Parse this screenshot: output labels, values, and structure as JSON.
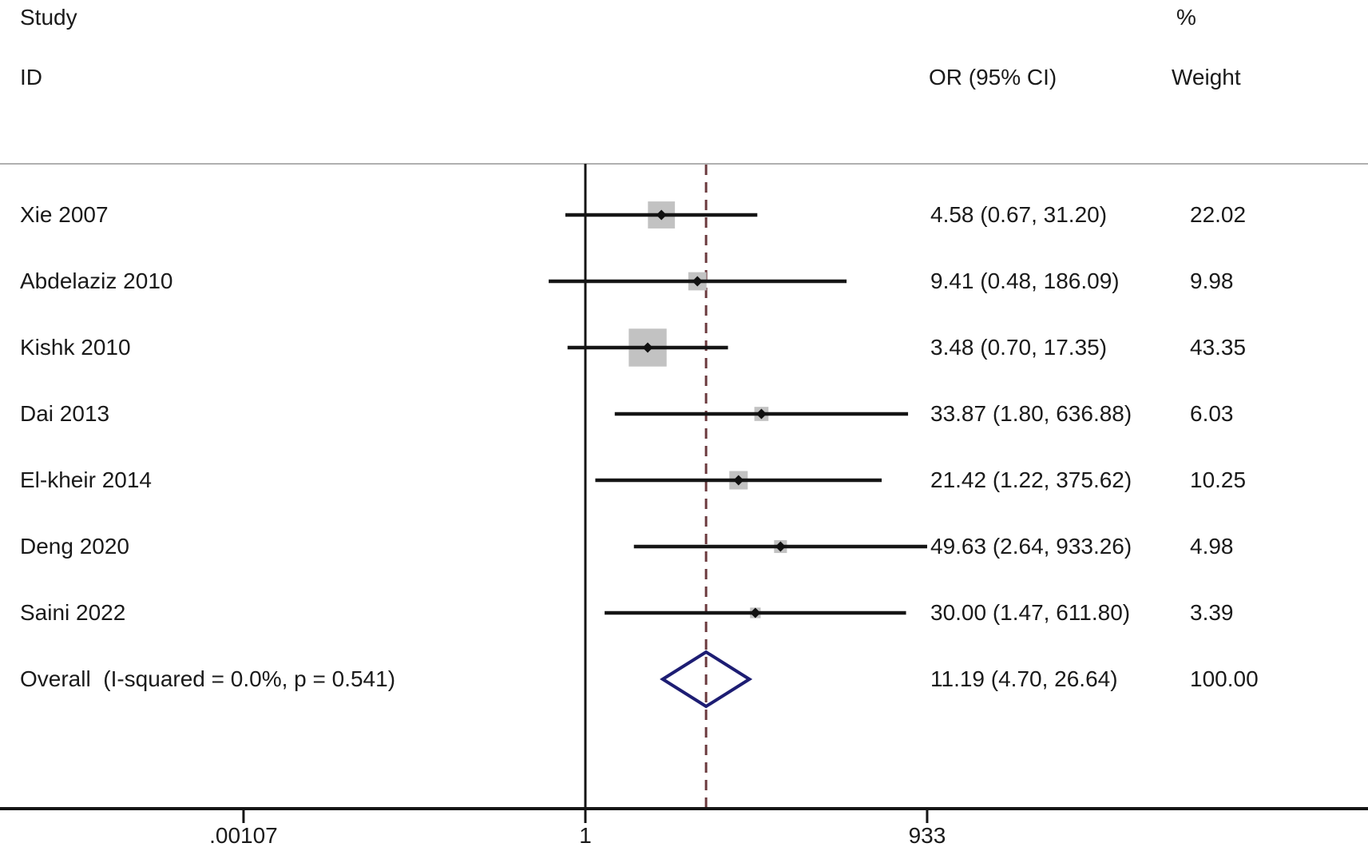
{
  "header": {
    "study_line1": "Study",
    "study_line2": "ID",
    "or_col": "OR (95% CI)",
    "weight_line1": "%",
    "weight_line2": "Weight"
  },
  "chart_data": {
    "type": "forest",
    "x_scale": "log",
    "x_ticks": [
      {
        "label": ".00107",
        "value": 0.00107
      },
      {
        "label": "1",
        "value": 1
      },
      {
        "label": "933",
        "value": 933
      }
    ],
    "null_line_value": 1,
    "studies": [
      {
        "id": "Xie 2007",
        "or": 4.58,
        "ci_low": 0.67,
        "ci_high": 31.2,
        "weight": 22.02,
        "or_text": "4.58 (0.67, 31.20)",
        "weight_text": "22.02"
      },
      {
        "id": "Abdelaziz 2010",
        "or": 9.41,
        "ci_low": 0.48,
        "ci_high": 186.09,
        "weight": 9.98,
        "or_text": "9.41 (0.48, 186.09)",
        "weight_text": "9.98"
      },
      {
        "id": "Kishk 2010",
        "or": 3.48,
        "ci_low": 0.7,
        "ci_high": 17.35,
        "weight": 43.35,
        "or_text": "3.48 (0.70, 17.35)",
        "weight_text": "43.35"
      },
      {
        "id": "Dai 2013",
        "or": 33.87,
        "ci_low": 1.8,
        "ci_high": 636.88,
        "weight": 6.03,
        "or_text": "33.87 (1.80, 636.88)",
        "weight_text": "6.03"
      },
      {
        "id": "El-kheir 2014",
        "or": 21.42,
        "ci_low": 1.22,
        "ci_high": 375.62,
        "weight": 10.25,
        "or_text": "21.42 (1.22, 375.62)",
        "weight_text": "10.25"
      },
      {
        "id": "Deng 2020",
        "or": 49.63,
        "ci_low": 2.64,
        "ci_high": 933.26,
        "weight": 4.98,
        "or_text": "49.63 (2.64, 933.26)",
        "weight_text": "4.98"
      },
      {
        "id": "Saini 2022",
        "or": 30.0,
        "ci_low": 1.47,
        "ci_high": 611.8,
        "weight": 3.39,
        "or_text": "30.00 (1.47, 611.80)",
        "weight_text": "3.39"
      }
    ],
    "overall": {
      "label": "Overall  (I-squared = 0.0%, p = 0.541)",
      "or": 11.19,
      "ci_low": 4.7,
      "ci_high": 26.64,
      "or_text": "11.19 (4.70, 26.64)",
      "weight_text": "100.00"
    }
  },
  "colors": {
    "text": "#1a1a1a",
    "line": "#151515",
    "box": "#c2c2c2",
    "diamond": "#1d1d73",
    "overall_dashed": "#6b3a3e",
    "top_rule": "#b0b0b0"
  }
}
